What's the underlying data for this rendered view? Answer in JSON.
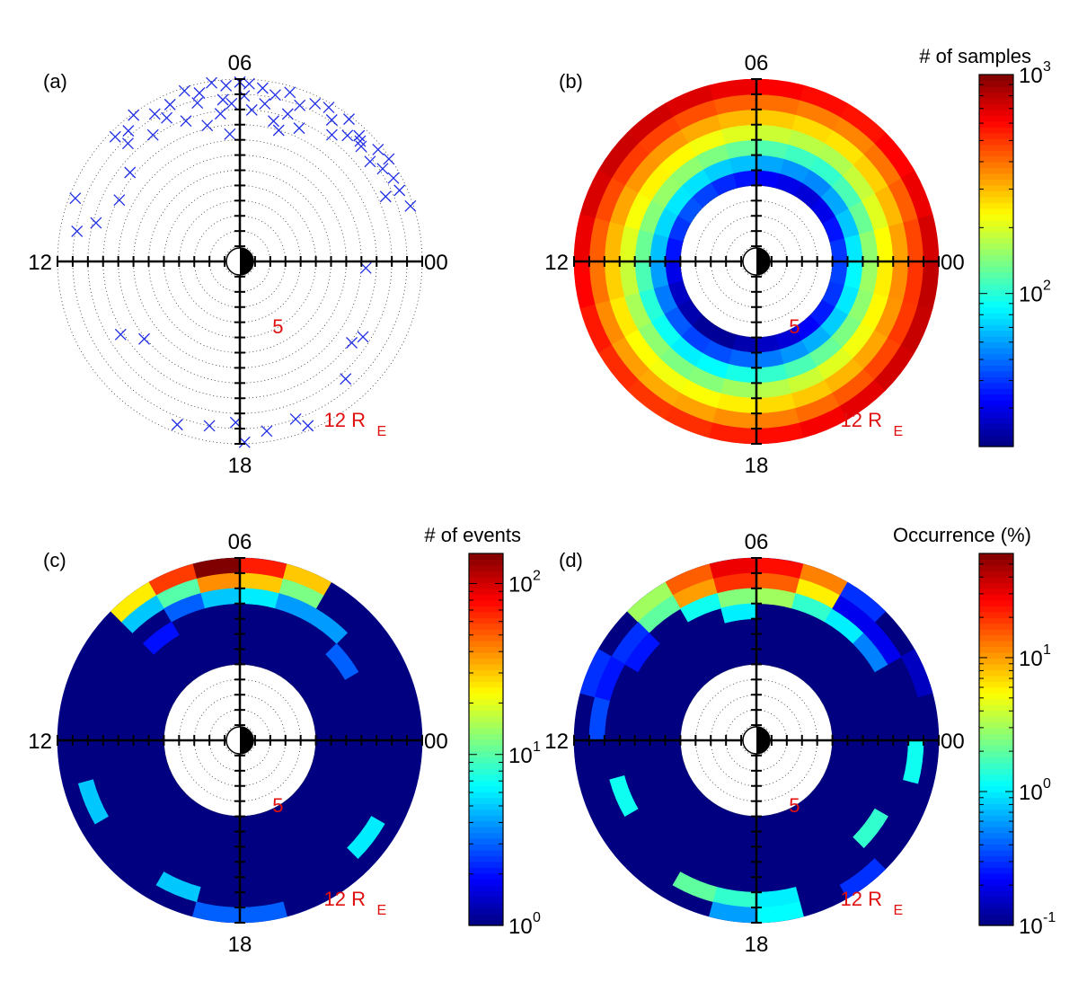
{
  "figure": {
    "description_free": true
  },
  "chart_data": [
    {
      "id": "a",
      "type": "scatter",
      "panel_label": "(a)",
      "coordinate_system": "polar MLT / radial distance (R_E)",
      "mlt_labels": {
        "top": "06",
        "right": "00",
        "bottom": "18",
        "left": "12"
      },
      "inner_ring_label": "5",
      "outer_ring_label": "12 R",
      "outer_ring_subscript": "E",
      "r_max": 12,
      "ring_step": 1,
      "marker": "x",
      "marker_color": "#1f2ee6",
      "points_r_mlt": [
        [
          11.8,
          6.0
        ],
        [
          11.7,
          5.8
        ],
        [
          11.6,
          6.3
        ],
        [
          11.5,
          5.5
        ],
        [
          11.9,
          6.6
        ],
        [
          11.4,
          6.9
        ],
        [
          11.2,
          5.2
        ],
        [
          11.6,
          4.9
        ],
        [
          11.8,
          7.2
        ],
        [
          11.3,
          7.6
        ],
        [
          11.0,
          4.6
        ],
        [
          10.9,
          5.9
        ],
        [
          10.7,
          6.4
        ],
        [
          11.5,
          4.3
        ],
        [
          11.2,
          8.0
        ],
        [
          10.5,
          5.4
        ],
        [
          10.8,
          7.0
        ],
        [
          11.7,
          4.0
        ],
        [
          11.9,
          8.4
        ],
        [
          10.4,
          6.2
        ],
        [
          10.2,
          4.8
        ],
        [
          11.1,
          3.8
        ],
        [
          10.0,
          5.7
        ],
        [
          10.6,
          7.8
        ],
        [
          11.8,
          3.5
        ],
        [
          11.3,
          8.7
        ],
        [
          9.8,
          6.5
        ],
        [
          10.9,
          3.3
        ],
        [
          11.6,
          9.0
        ],
        [
          9.5,
          5.1
        ],
        [
          11.0,
          2.9
        ],
        [
          10.1,
          8.3
        ],
        [
          11.4,
          3.1
        ],
        [
          9.2,
          6.9
        ],
        [
          11.7,
          2.6
        ],
        [
          10.3,
          3.6
        ],
        [
          9.6,
          4.4
        ],
        [
          10.7,
          8.9
        ],
        [
          11.9,
          2.3
        ],
        [
          9.9,
          7.4
        ],
        [
          11.2,
          2.2
        ],
        [
          10.8,
          2.5
        ],
        [
          9.0,
          4.9
        ],
        [
          11.5,
          1.9
        ],
        [
          8.4,
          6.3
        ],
        [
          10.5,
          1.6
        ],
        [
          11.8,
          1.2
        ],
        [
          9.3,
          9.4
        ],
        [
          8.9,
          10.2
        ],
        [
          9.8,
          11.0
        ],
        [
          10.9,
          11.3
        ],
        [
          11.6,
          10.6
        ],
        [
          8.1,
          14.6
        ],
        [
          9.2,
          14.1
        ],
        [
          11.5,
          16.6
        ],
        [
          11.0,
          17.3
        ],
        [
          10.6,
          17.9
        ],
        [
          11.9,
          18.1
        ],
        [
          11.3,
          18.6
        ],
        [
          11.0,
          19.3
        ],
        [
          11.7,
          19.5
        ],
        [
          10.4,
          20.8
        ],
        [
          9.1,
          21.6
        ],
        [
          9.5,
          21.9
        ],
        [
          8.3,
          23.8
        ],
        [
          11.2,
          3.0
        ],
        [
          11.5,
          1.6
        ]
      ]
    },
    {
      "id": "b",
      "type": "heatmap",
      "panel_label": "(b)",
      "coordinate_system": "polar MLT / radial distance (R_E)",
      "mlt_labels": {
        "top": "06",
        "right": "00",
        "bottom": "18",
        "left": "12"
      },
      "inner_ring_label": "5",
      "outer_ring_label": "12 R",
      "outer_ring_subscript": "E",
      "r_bins": [
        5,
        6,
        7,
        8,
        9,
        10,
        11,
        12
      ],
      "mlt_bin_hours": 1,
      "colorbar": {
        "title": "# of samples",
        "scale": "log",
        "min": 20,
        "max": 1000,
        "ticks": [
          {
            "value": 100,
            "base": "10",
            "exp": "2"
          },
          {
            "value": 1000,
            "base": "10",
            "exp": "3"
          }
        ]
      },
      "values_by_ring": [
        [
          40,
          35,
          30,
          28,
          30,
          32,
          35,
          38,
          42,
          45,
          40,
          35,
          30,
          26,
          24,
          22,
          22,
          24,
          26,
          28,
          32,
          36,
          40,
          42
        ],
        [
          80,
          70,
          62,
          55,
          58,
          62,
          68,
          72,
          78,
          80,
          75,
          68,
          60,
          52,
          46,
          42,
          44,
          48,
          52,
          58,
          64,
          72,
          80,
          85
        ],
        [
          150,
          130,
          115,
          105,
          110,
          118,
          128,
          140,
          150,
          155,
          145,
          130,
          115,
          100,
          90,
          82,
          86,
          95,
          105,
          115,
          128,
          140,
          150,
          158
        ],
        [
          230,
          205,
          185,
          170,
          178,
          190,
          205,
          220,
          235,
          240,
          225,
          205,
          185,
          165,
          150,
          140,
          145,
          160,
          175,
          190,
          205,
          220,
          235,
          245
        ],
        [
          330,
          300,
          275,
          255,
          265,
          280,
          300,
          320,
          340,
          345,
          325,
          300,
          275,
          250,
          230,
          220,
          228,
          245,
          265,
          285,
          305,
          325,
          345,
          355
        ],
        [
          470,
          430,
          395,
          370,
          380,
          400,
          430,
          455,
          480,
          490,
          465,
          430,
          395,
          360,
          335,
          320,
          330,
          355,
          380,
          410,
          440,
          470,
          495,
          505
        ],
        [
          720,
          660,
          610,
          570,
          590,
          620,
          660,
          700,
          735,
          750,
          710,
          660,
          610,
          560,
          520,
          500,
          515,
          550,
          590,
          635,
          680,
          725,
          760,
          780
        ]
      ]
    },
    {
      "id": "c",
      "type": "heatmap",
      "panel_label": "(c)",
      "coordinate_system": "polar MLT / radial distance (R_E)",
      "mlt_labels": {
        "top": "06",
        "right": "00",
        "bottom": "18",
        "left": "12"
      },
      "inner_ring_label": "5",
      "outer_ring_label": "12 R",
      "outer_ring_subscript": "E",
      "r_bins": [
        5,
        6,
        7,
        8,
        9,
        10,
        11,
        12
      ],
      "mlt_bin_hours": 1,
      "colorbar": {
        "title": "# of events",
        "scale": "log",
        "min": 1,
        "max": 150,
        "ticks": [
          {
            "value": 1,
            "base": "10",
            "exp": "0"
          },
          {
            "value": 10,
            "base": "10",
            "exp": "1"
          },
          {
            "value": 100,
            "base": "10",
            "exp": "2"
          }
        ]
      },
      "background_value": 1,
      "cells_r_mlt_value": [
        [
          11,
          6,
          150
        ],
        [
          11,
          5,
          70
        ],
        [
          11,
          4,
          30
        ],
        [
          11,
          7,
          60
        ],
        [
          11,
          8,
          25
        ],
        [
          10,
          6,
          40
        ],
        [
          10,
          5,
          30
        ],
        [
          10,
          4,
          12
        ],
        [
          10,
          7,
          10
        ],
        [
          10,
          8,
          5
        ],
        [
          9,
          6,
          5
        ],
        [
          9,
          5,
          6
        ],
        [
          9,
          4,
          4
        ],
        [
          9,
          3,
          4
        ],
        [
          9,
          7,
          3
        ],
        [
          8,
          2,
          3
        ],
        [
          8,
          8,
          2
        ],
        [
          10,
          13,
          5
        ],
        [
          11,
          17,
          3
        ],
        [
          11,
          18,
          3
        ],
        [
          10,
          16,
          5
        ],
        [
          10,
          21,
          6
        ]
      ]
    },
    {
      "id": "d",
      "type": "heatmap",
      "panel_label": "(d)",
      "coordinate_system": "polar MLT / radial distance (R_E)",
      "mlt_labels": {
        "top": "06",
        "right": "00",
        "bottom": "18",
        "left": "12"
      },
      "inner_ring_label": "5",
      "outer_ring_label": "12 R",
      "outer_ring_subscript": "E",
      "r_bins": [
        5,
        6,
        7,
        8,
        9,
        10,
        11,
        12
      ],
      "mlt_bin_hours": 1,
      "colorbar": {
        "title": "Occurrence (%)",
        "scale": "log",
        "min": 0.1,
        "max": 60,
        "ticks": [
          {
            "value": 0.1,
            "base": "10",
            "exp": "-1"
          },
          {
            "value": 1,
            "base": "10",
            "exp": "0"
          },
          {
            "value": 10,
            "base": "10",
            "exp": "1"
          }
        ]
      },
      "background_value": 0.1,
      "cells_r_mlt_value": [
        [
          11,
          6,
          30
        ],
        [
          11,
          5,
          25
        ],
        [
          11,
          4,
          12
        ],
        [
          11,
          7,
          15
        ],
        [
          11,
          8,
          3
        ],
        [
          10,
          6,
          20
        ],
        [
          10,
          5,
          15
        ],
        [
          10,
          4,
          6
        ],
        [
          10,
          7,
          10
        ],
        [
          10,
          8,
          2
        ],
        [
          9,
          6,
          2.5
        ],
        [
          9,
          5,
          3
        ],
        [
          9,
          4,
          1.5
        ],
        [
          9,
          7,
          1.2
        ],
        [
          9,
          3,
          1
        ],
        [
          8,
          6,
          1.0
        ],
        [
          9,
          2,
          0.5
        ],
        [
          11,
          3,
          0.3
        ],
        [
          10,
          3,
          0.2
        ],
        [
          10,
          9,
          0.3
        ],
        [
          11,
          10,
          0.3
        ],
        [
          10,
          10,
          0.25
        ],
        [
          10,
          11,
          0.35
        ],
        [
          9,
          9,
          0.25
        ],
        [
          11,
          1,
          0.15
        ],
        [
          10,
          2,
          0.2
        ],
        [
          9,
          13,
          1.2
        ],
        [
          10,
          16,
          2.0
        ],
        [
          10,
          17,
          1.5
        ],
        [
          10,
          18,
          1.0
        ],
        [
          11,
          17,
          0.6
        ],
        [
          11,
          18,
          1.1
        ],
        [
          11,
          20,
          0.3
        ],
        [
          9,
          21,
          1.5
        ],
        [
          10,
          23,
          1.2
        ]
      ]
    }
  ]
}
